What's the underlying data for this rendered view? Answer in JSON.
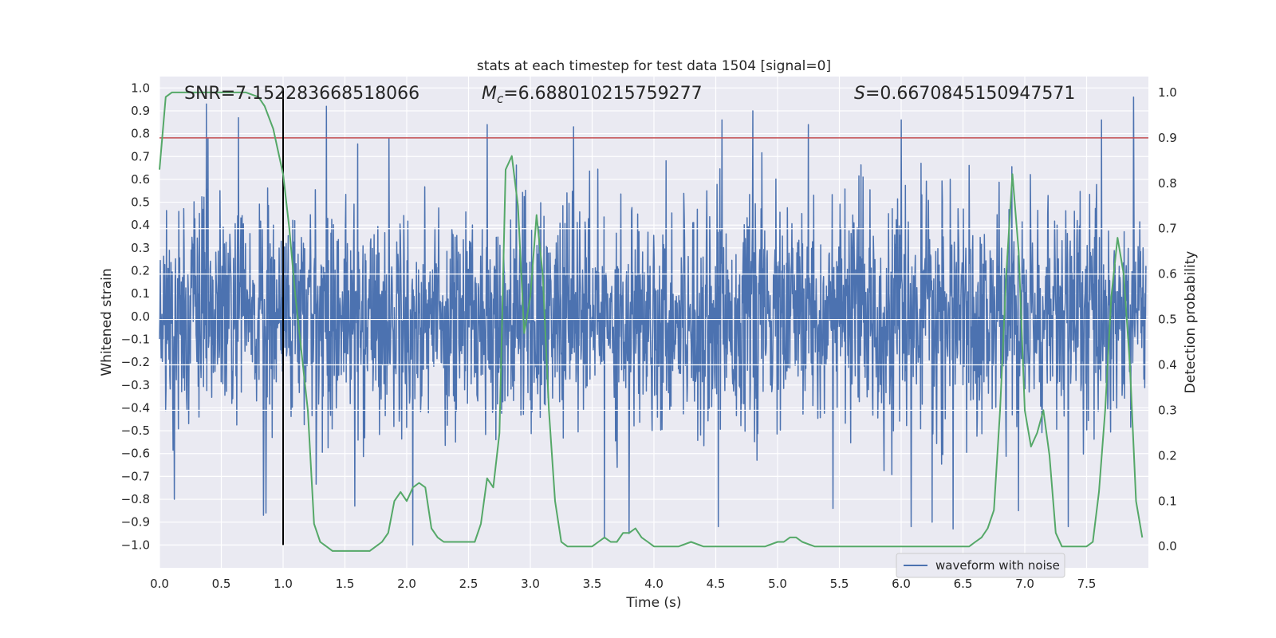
{
  "chart_data": {
    "type": "line",
    "title": "stats at each timestep for test data 1504 [signal=0]",
    "xlabel": "Time (s)",
    "ylabel": "Whitened strain",
    "y2label": "Detection probability",
    "xlim": [
      0.0,
      8.0
    ],
    "ylim": [
      -1.1,
      1.05
    ],
    "y2lim": [
      -0.047,
      1.035
    ],
    "xticks": [
      0.0,
      0.5,
      1.0,
      1.5,
      2.0,
      2.5,
      3.0,
      3.5,
      4.0,
      4.5,
      5.0,
      5.5,
      6.0,
      6.5,
      7.0,
      7.5
    ],
    "xtick_labels": [
      "0.0",
      "0.5",
      "1.0",
      "1.5",
      "2.0",
      "2.5",
      "3.0",
      "3.5",
      "4.0",
      "4.5",
      "5.0",
      "5.5",
      "6.0",
      "6.5",
      "7.0",
      "7.5"
    ],
    "yticks": [
      1.0,
      0.9,
      0.8,
      0.7,
      0.6,
      0.5,
      0.4,
      0.3,
      0.2,
      0.1,
      0.0,
      -0.1,
      -0.2,
      -0.3,
      -0.4,
      -0.5,
      -0.6,
      -0.7,
      -0.8,
      -0.9,
      -1.0
    ],
    "ytick_labels": [
      "1.0",
      "0.9",
      "0.8",
      "0.7",
      "0.6",
      "0.5",
      "0.4",
      "0.3",
      "0.2",
      "0.1",
      "0.0",
      "−0.1",
      "−0.2",
      "−0.3",
      "−0.4",
      "−0.5",
      "−0.6",
      "−0.7",
      "−0.8",
      "−0.9",
      "−1.0"
    ],
    "y2ticks": [
      1.0,
      0.9,
      0.8,
      0.7,
      0.6,
      0.5,
      0.4,
      0.3,
      0.2,
      0.1,
      0.0
    ],
    "y2tick_labels": [
      "1.0",
      "0.9",
      "0.8",
      "0.7",
      "0.6",
      "0.5",
      "0.4",
      "0.3",
      "0.2",
      "0.1",
      "0.0"
    ],
    "annotations": {
      "snr": "SNR=7.152283668518066",
      "mc_symbol": "M",
      "mc_sub": "c",
      "mc_value": "=6.688010215759277",
      "s_symbol": "S",
      "s_value": "=0.6670845150947571"
    },
    "threshold": {
      "axis": "right",
      "y": 0.9
    },
    "marker": {
      "x": 1.0,
      "y_from": -1.0,
      "y_to": 1.0
    },
    "legend": {
      "entries": [
        "waveform with noise"
      ],
      "location": "lower right"
    },
    "grid": true,
    "series": [
      {
        "name": "waveform with noise",
        "axis": "left",
        "kind": "noise",
        "envelope": 0.38,
        "spikes": [
          {
            "x": 0.38,
            "y": 0.93
          },
          {
            "x": 0.64,
            "y": 0.87
          },
          {
            "x": 1.35,
            "y": 0.92
          },
          {
            "x": 1.58,
            "y": 0.86
          },
          {
            "x": 2.65,
            "y": 0.84
          },
          {
            "x": 3.35,
            "y": 0.83
          },
          {
            "x": 3.8,
            "y": 0.89
          },
          {
            "x": 4.55,
            "y": 0.86
          },
          {
            "x": 4.8,
            "y": 0.9
          },
          {
            "x": 5.25,
            "y": 0.84
          },
          {
            "x": 6.0,
            "y": 0.86
          },
          {
            "x": 7.62,
            "y": 0.86
          },
          {
            "x": 7.88,
            "y": 0.96
          },
          {
            "x": 0.12,
            "y": -0.8
          },
          {
            "x": 0.84,
            "y": -0.87
          },
          {
            "x": 0.86,
            "y": -0.86
          },
          {
            "x": 1.58,
            "y": -0.83
          },
          {
            "x": 2.05,
            "y": -1.0
          },
          {
            "x": 3.6,
            "y": -0.97
          },
          {
            "x": 3.8,
            "y": -0.95
          },
          {
            "x": 4.52,
            "y": -0.92
          },
          {
            "x": 5.45,
            "y": -0.84
          },
          {
            "x": 6.08,
            "y": -0.92
          },
          {
            "x": 6.25,
            "y": -0.9
          },
          {
            "x": 6.42,
            "y": -0.93
          },
          {
            "x": 6.95,
            "y": -0.85
          },
          {
            "x": 7.35,
            "y": -0.92
          }
        ]
      },
      {
        "name": "detection probability",
        "axis": "right",
        "x": [
          0.0,
          0.05,
          0.1,
          0.2,
          0.3,
          0.4,
          0.5,
          0.6,
          0.7,
          0.8,
          0.85,
          0.92,
          1.0,
          1.05,
          1.1,
          1.2,
          1.25,
          1.3,
          1.35,
          1.4,
          1.5,
          1.6,
          1.7,
          1.75,
          1.8,
          1.85,
          1.9,
          1.95,
          2.0,
          2.05,
          2.1,
          2.15,
          2.2,
          2.25,
          2.3,
          2.4,
          2.5,
          2.55,
          2.6,
          2.65,
          2.7,
          2.75,
          2.8,
          2.85,
          2.9,
          2.95,
          3.0,
          3.05,
          3.1,
          3.15,
          3.2,
          3.25,
          3.3,
          3.35,
          3.4,
          3.5,
          3.55,
          3.6,
          3.65,
          3.7,
          3.75,
          3.8,
          3.85,
          3.9,
          3.95,
          4.0,
          4.1,
          4.2,
          4.3,
          4.4,
          4.5,
          4.6,
          4.7,
          4.8,
          4.9,
          5.0,
          5.05,
          5.1,
          5.15,
          5.2,
          5.3,
          5.4,
          5.5,
          5.6,
          5.8,
          6.0,
          6.2,
          6.4,
          6.55,
          6.6,
          6.65,
          6.7,
          6.75,
          6.8,
          6.85,
          6.9,
          6.95,
          7.0,
          7.05,
          7.1,
          7.15,
          7.2,
          7.25,
          7.3,
          7.35,
          7.4,
          7.5,
          7.55,
          7.6,
          7.65,
          7.7,
          7.75,
          7.8,
          7.85,
          7.9,
          7.95
        ],
        "y": [
          0.83,
          0.99,
          1.0,
          1.0,
          1.0,
          1.0,
          1.0,
          1.0,
          1.0,
          0.99,
          0.97,
          0.92,
          0.82,
          0.7,
          0.55,
          0.3,
          0.05,
          0.01,
          0.0,
          -0.01,
          -0.01,
          -0.01,
          -0.01,
          0.0,
          0.01,
          0.03,
          0.1,
          0.12,
          0.1,
          0.13,
          0.14,
          0.13,
          0.04,
          0.02,
          0.01,
          0.01,
          0.01,
          0.01,
          0.05,
          0.15,
          0.13,
          0.25,
          0.83,
          0.86,
          0.75,
          0.47,
          0.55,
          0.73,
          0.6,
          0.3,
          0.1,
          0.01,
          0.0,
          0.0,
          0.0,
          0.0,
          0.01,
          0.02,
          0.01,
          0.01,
          0.03,
          0.03,
          0.04,
          0.02,
          0.01,
          0.0,
          0.0,
          0.0,
          0.01,
          0.0,
          0.0,
          0.0,
          0.0,
          0.0,
          0.0,
          0.01,
          0.01,
          0.02,
          0.02,
          0.01,
          0.0,
          0.0,
          0.0,
          0.0,
          0.0,
          0.0,
          0.0,
          0.0,
          0.0,
          0.01,
          0.02,
          0.04,
          0.08,
          0.3,
          0.6,
          0.82,
          0.65,
          0.3,
          0.22,
          0.25,
          0.3,
          0.2,
          0.03,
          0.0,
          0.0,
          0.0,
          0.0,
          0.01,
          0.12,
          0.3,
          0.55,
          0.68,
          0.6,
          0.4,
          0.1,
          0.02
        ]
      }
    ]
  },
  "colors": {
    "plot_background": "#eaeaf2",
    "grid": "#ffffff",
    "waveform": "#4c72b0",
    "probability": "#55a868",
    "threshold": "#c44e52",
    "marker": "#000000",
    "text": "#262626"
  }
}
